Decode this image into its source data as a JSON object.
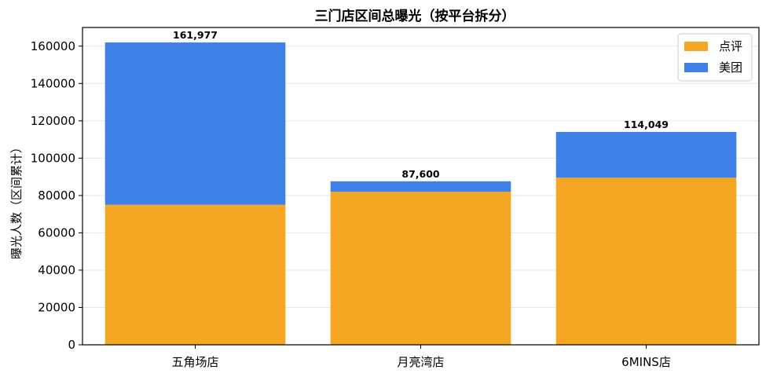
{
  "chart_data": {
    "type": "bar",
    "stacked": true,
    "title": "三门店区间总曝光（按平台拆分）",
    "xlabel": "",
    "ylabel": "曝光人数（区间累计）",
    "categories": [
      "五角场店",
      "月亮湾店",
      "6MINS店"
    ],
    "series": [
      {
        "name": "点评",
        "color": "#F5A623",
        "values": [
          75000,
          82000,
          89500
        ]
      },
      {
        "name": "美团",
        "color": "#4081E8",
        "values": [
          86977,
          5600,
          24549
        ]
      }
    ],
    "totals": [
      161977,
      87600,
      114049
    ],
    "total_labels": [
      "161,977",
      "87,600",
      "114,049"
    ],
    "ylim": [
      0,
      170000
    ],
    "yticks": [
      0,
      20000,
      40000,
      60000,
      80000,
      100000,
      120000,
      140000,
      160000
    ],
    "grid": "y",
    "legend_position": "top-right"
  }
}
